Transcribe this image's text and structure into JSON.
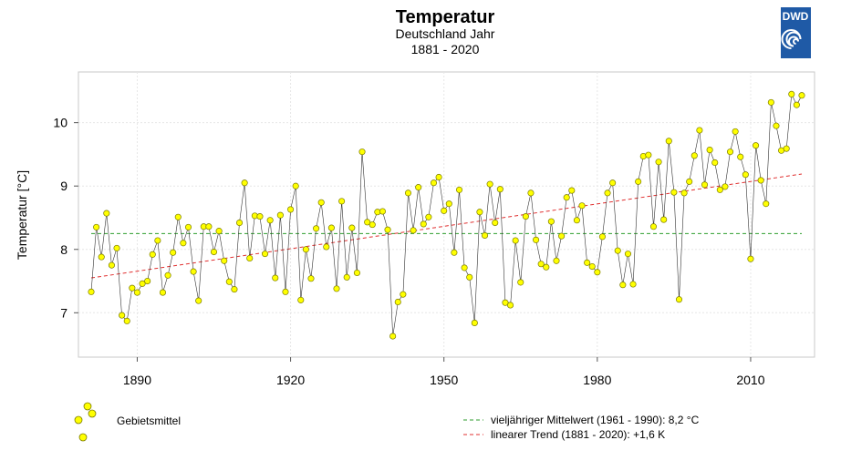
{
  "logo": {
    "text": "DWD",
    "color": "#1f5aa6"
  },
  "legend": {
    "points_label": "Gebietsmittel",
    "mean_label": "vieljähriger Mittelwert (1961 - 1990): 8,2 °C",
    "trend_label": "linearer Trend (1881 - 2020): +1,6 K"
  },
  "chart_data": {
    "type": "line",
    "title": "Temperatur",
    "subtitle": "Deutschland Jahr",
    "period": "1881 - 2020",
    "ylabel": "Temperatur [°C]",
    "xlabel": "",
    "xlim": [
      1878.5,
      2022.5
    ],
    "ylim": [
      6.3,
      10.8
    ],
    "xticks": [
      1890,
      1920,
      1950,
      1980,
      2010
    ],
    "yticks": [
      7,
      8,
      9,
      10
    ],
    "grid": true,
    "colors": {
      "points": "#ffff00",
      "point_edge": "#7a7a00",
      "mean": "#2e9e2e",
      "trend": "#e03030",
      "line": "#333333"
    },
    "series": [
      {
        "name": "Gebietsmittel",
        "x_start": 1881,
        "values": [
          7.33,
          8.35,
          7.88,
          8.57,
          7.75,
          8.02,
          6.96,
          6.87,
          7.39,
          7.32,
          7.46,
          7.5,
          7.92,
          8.14,
          7.32,
          7.59,
          7.95,
          8.51,
          8.1,
          8.35,
          7.65,
          7.19,
          8.36,
          8.36,
          7.96,
          8.29,
          7.82,
          7.49,
          7.37,
          8.42,
          9.05,
          7.86,
          8.53,
          8.52,
          7.93,
          8.46,
          7.55,
          8.54,
          7.33,
          8.63,
          9.0,
          7.2,
          8.0,
          7.54,
          8.33,
          8.74,
          8.04,
          8.34,
          7.38,
          8.76,
          7.56,
          8.34,
          7.63,
          9.54,
          8.43,
          8.39,
          8.59,
          8.6,
          8.31,
          6.63,
          7.17,
          7.29,
          8.89,
          8.3,
          8.98,
          8.4,
          8.51,
          9.05,
          9.14,
          8.61,
          8.72,
          7.95,
          8.94,
          7.71,
          7.56,
          6.84,
          8.59,
          8.22,
          9.03,
          8.42,
          8.95,
          7.16,
          7.12,
          8.14,
          7.48,
          8.52,
          8.89,
          8.15,
          7.77,
          7.72,
          8.44,
          7.82,
          8.21,
          8.82,
          8.93,
          8.46,
          8.69,
          7.79,
          7.73,
          7.64,
          8.2,
          8.89,
          9.05,
          7.98,
          7.44,
          7.93,
          7.45,
          9.07,
          9.47,
          9.49,
          8.36,
          9.38,
          8.47,
          9.71,
          8.9,
          7.21,
          8.89,
          9.07,
          9.48,
          9.88,
          9.02,
          9.57,
          9.37,
          8.94,
          8.99,
          9.54,
          9.86,
          9.46,
          9.18,
          7.85,
          9.64,
          9.09,
          8.72,
          10.32,
          9.95,
          9.56,
          9.59,
          10.45,
          10.28,
          10.43
        ]
      },
      {
        "name": "vieljähriger Mittelwert (1961 - 1990)",
        "value": 8.25
      },
      {
        "name": "linearer Trend (1881 - 2020)",
        "x": [
          1881,
          2020
        ],
        "values": [
          7.55,
          9.19
        ]
      }
    ]
  }
}
